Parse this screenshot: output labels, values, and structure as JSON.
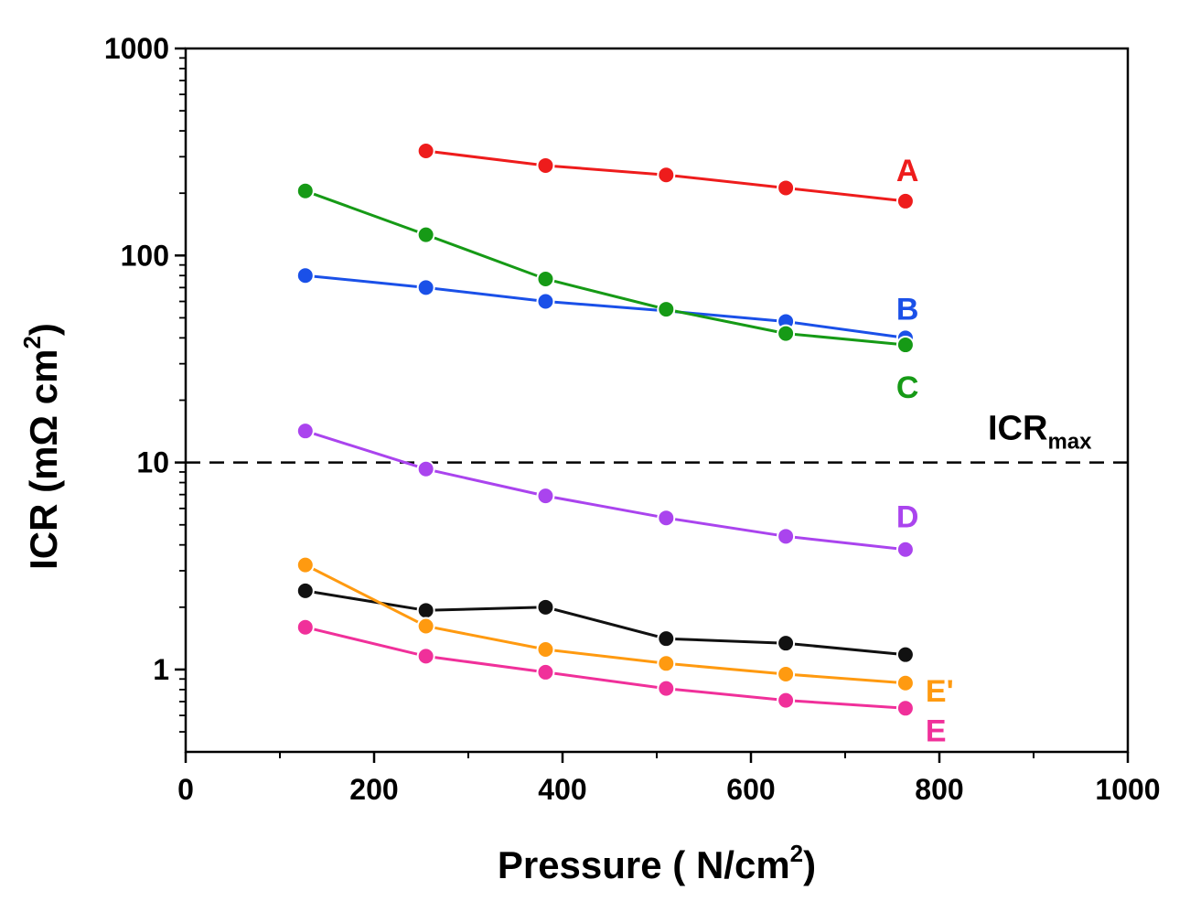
{
  "chart_data": {
    "type": "line",
    "xlabel": {
      "main": "Pressure ( N/cm",
      "sup": "2",
      "tail": ")"
    },
    "ylabel": {
      "main": "ICR (mΩ cm",
      "sup": "2",
      "tail": ")"
    },
    "xlim": [
      0,
      1000
    ],
    "ylim": [
      0.4,
      1000
    ],
    "yscale": "log",
    "x_ticks": [
      0,
      200,
      400,
      600,
      800,
      1000
    ],
    "x_tick_labels": [
      "0",
      "200",
      "400",
      "600",
      "800",
      "1000"
    ],
    "y_ticks": [
      1,
      10,
      100,
      1000
    ],
    "y_tick_labels": [
      "1",
      "10",
      "100",
      "1000"
    ],
    "grid": false,
    "legend": "none",
    "reference_line": {
      "y": 10,
      "style": "dashed",
      "label": "ICR",
      "label_sub": "max"
    },
    "series": [
      {
        "name": "A",
        "color": "#ee1c1c",
        "x": [
          255,
          382,
          510,
          637,
          764
        ],
        "y": [
          320,
          272,
          245,
          212,
          183
        ]
      },
      {
        "name": "B",
        "color": "#1a50e8",
        "x": [
          127,
          255,
          382,
          510,
          637,
          764
        ],
        "y": [
          80,
          70,
          60,
          54,
          48,
          40
        ]
      },
      {
        "name": "C",
        "color": "#169a16",
        "x": [
          127,
          255,
          382,
          510,
          637,
          764
        ],
        "y": [
          205,
          126,
          77,
          55,
          42,
          37
        ]
      },
      {
        "name": "D",
        "color": "#aa44ee",
        "x": [
          127,
          255,
          382,
          510,
          637,
          764
        ],
        "y": [
          14.2,
          9.3,
          6.9,
          5.4,
          4.4,
          3.8
        ]
      },
      {
        "name": "",
        "color": "#111111",
        "x": [
          127,
          255,
          382,
          510,
          637,
          764
        ],
        "y": [
          2.4,
          1.93,
          2.0,
          1.41,
          1.34,
          1.18
        ]
      },
      {
        "name": "E'",
        "color": "#ff9a10",
        "x": [
          127,
          255,
          382,
          510,
          637,
          764
        ],
        "y": [
          3.2,
          1.62,
          1.25,
          1.07,
          0.95,
          0.86
        ]
      },
      {
        "name": "E",
        "color": "#f0309a",
        "x": [
          127,
          255,
          382,
          510,
          637,
          764
        ],
        "y": [
          1.6,
          1.16,
          0.97,
          0.81,
          0.71,
          0.65
        ]
      }
    ]
  }
}
